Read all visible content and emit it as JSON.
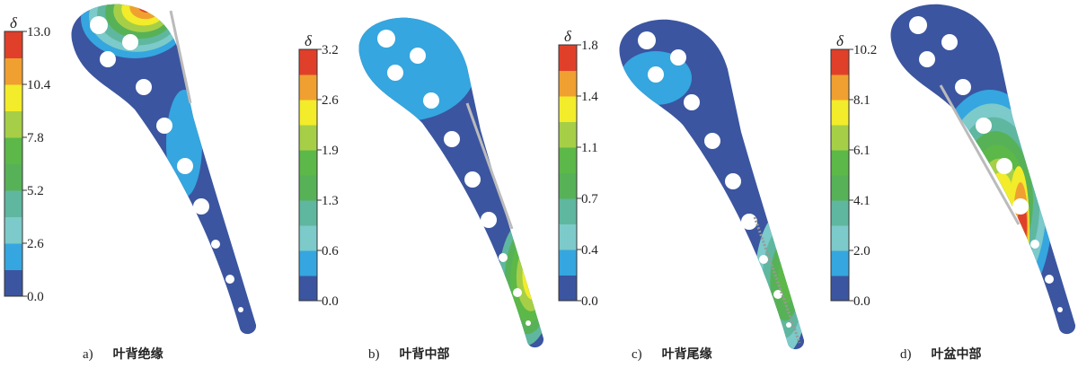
{
  "colors": [
    "#3b55a0",
    "#35a6df",
    "#7ccac9",
    "#5fb7a0",
    "#57b257",
    "#5cb848",
    "#a6cf47",
    "#f2ec2a",
    "#f0a030",
    "#e0402a"
  ],
  "chart_data": [
    {
      "type": "heatmap",
      "panel": "a)",
      "title": "叶背绝缘",
      "colorbar_label": "δ",
      "ticks": [
        "0.0",
        "2.6",
        "5.2",
        "7.8",
        "10.4",
        "13.0"
      ],
      "range": [
        0.0,
        13.0
      ],
      "bands": 10
    },
    {
      "type": "heatmap",
      "panel": "b)",
      "title": "叶背中部",
      "colorbar_label": "δ",
      "ticks": [
        "0.0",
        "0.6",
        "1.3",
        "1.9",
        "2.6",
        "3.2"
      ],
      "range": [
        0.0,
        3.2
      ],
      "bands": 10
    },
    {
      "type": "heatmap",
      "panel": "c)",
      "title": "叶背尾缘",
      "colorbar_label": "δ",
      "ticks": [
        "0.0",
        "0.4",
        "0.7",
        "1.1",
        "1.4",
        "1.8"
      ],
      "range": [
        0.0,
        1.8
      ],
      "bands": 10
    },
    {
      "type": "heatmap",
      "panel": "d)",
      "title": "叶盆中部",
      "colorbar_label": "δ",
      "ticks": [
        "0.0",
        "2.0",
        "4.1",
        "6.1",
        "8.1",
        "10.2"
      ],
      "range": [
        0.0,
        10.2
      ],
      "bands": 10
    }
  ]
}
